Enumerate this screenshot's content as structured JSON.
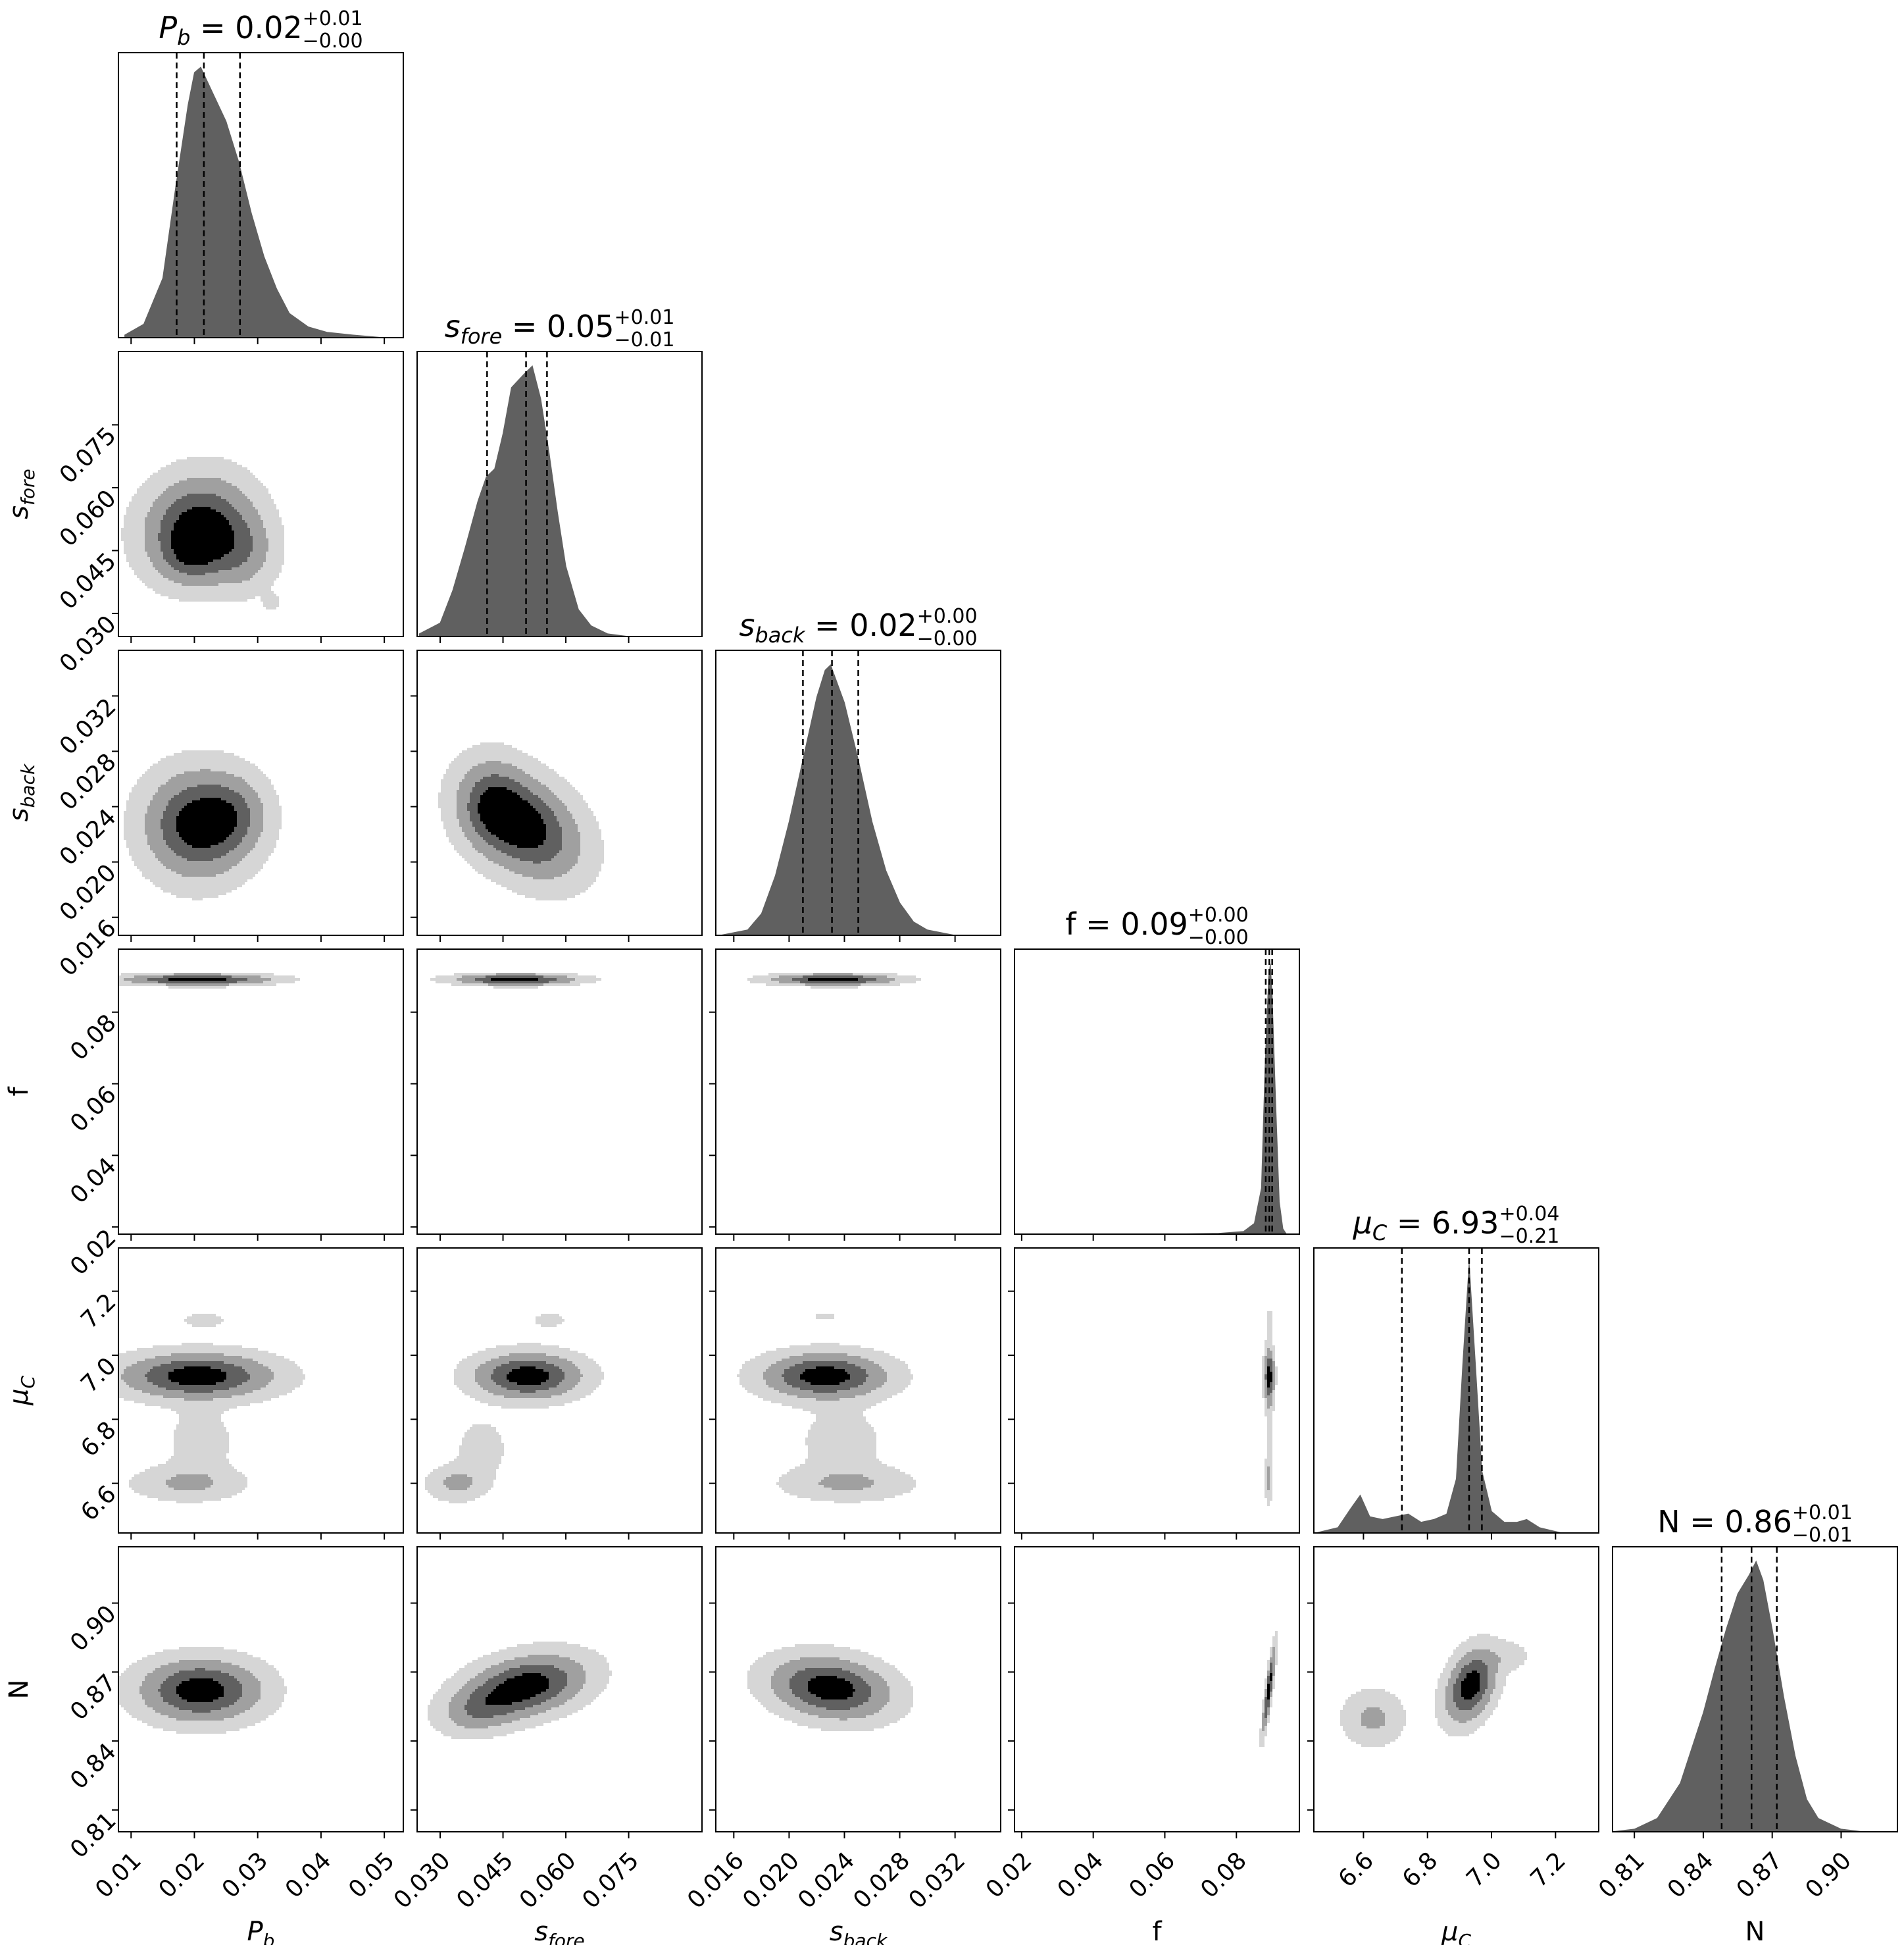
{
  "figure": {
    "style": {
      "hist_fill": "#606060",
      "contour_fills": [
        "#d6d6d6",
        "#a0a0a0",
        "#606060",
        "#000000"
      ],
      "frame_color": "#000000",
      "quantile_line": "dashed"
    },
    "parameters": [
      {
        "id": "Pb",
        "label": "P",
        "sub": "b",
        "italic": true,
        "range": [
          0.008,
          0.053
        ],
        "ticks": [
          "0.01",
          "0.02",
          "0.03",
          "0.04",
          "0.05"
        ],
        "tick_values": [
          0.01,
          0.02,
          0.03,
          0.04,
          0.05
        ]
      },
      {
        "id": "sfore",
        "label": "s",
        "sub": "fore",
        "italic": true,
        "range": [
          0.0245,
          0.0925
        ],
        "ticks": [
          "0.030",
          "0.045",
          "0.060",
          "0.075"
        ],
        "tick_values": [
          0.03,
          0.045,
          0.06,
          0.075
        ]
      },
      {
        "id": "sback",
        "label": "s",
        "sub": "back",
        "italic": true,
        "range": [
          0.0147,
          0.0353
        ],
        "ticks": [
          "0.016",
          "0.020",
          "0.024",
          "0.028",
          "0.032"
        ],
        "tick_values": [
          0.016,
          0.02,
          0.024,
          0.028,
          0.032
        ]
      },
      {
        "id": "f",
        "label": "f",
        "sub": "",
        "italic": false,
        "range": [
          0.018,
          0.0976
        ],
        "ticks": [
          "0.02",
          "0.04",
          "0.06",
          "0.08"
        ],
        "tick_values": [
          0.02,
          0.04,
          0.06,
          0.08
        ]
      },
      {
        "id": "muC",
        "label": "μ",
        "sub": "C",
        "italic": true,
        "range": [
          6.445,
          7.335
        ],
        "ticks": [
          "6.6",
          "6.8",
          "7.0",
          "7.2"
        ],
        "tick_values": [
          6.6,
          6.8,
          7.0,
          7.2
        ]
      },
      {
        "id": "N",
        "label": "N",
        "sub": "",
        "italic": false,
        "range": [
          0.8005,
          0.9245
        ],
        "ticks": [
          "0.81",
          "0.84",
          "0.87",
          "0.90"
        ],
        "tick_values": [
          0.81,
          0.84,
          0.87,
          0.9
        ]
      }
    ],
    "titles": [
      {
        "name": "P",
        "sub": "b",
        "italic": true,
        "value": "0.02",
        "plus": "+0.01",
        "minus": "−0.00"
      },
      {
        "name": "s",
        "sub": "fore",
        "italic": true,
        "value": "0.05",
        "plus": "+0.01",
        "minus": "−0.01"
      },
      {
        "name": "s",
        "sub": "back",
        "italic": true,
        "value": "0.02",
        "plus": "+0.00",
        "minus": "−0.00"
      },
      {
        "name": "f",
        "sub": "",
        "italic": false,
        "value": "0.09",
        "plus": "+0.00",
        "minus": "−0.00"
      },
      {
        "name": "μ",
        "sub": "C",
        "italic": true,
        "value": "6.93",
        "plus": "+0.04",
        "minus": "−0.21"
      },
      {
        "name": "N",
        "sub": "",
        "italic": false,
        "value": "0.86",
        "plus": "+0.01",
        "minus": "−0.01"
      }
    ]
  },
  "chart_data": {
    "type": "corner",
    "parameters": [
      "P_b",
      "s_fore",
      "s_back",
      "f",
      "μ_C",
      "N"
    ],
    "medians": [
      0.0215,
      0.0505,
      0.0231,
      0.0892,
      6.93,
      0.861
    ],
    "quantiles_16_84": [
      [
        0.0172,
        0.0272
      ],
      [
        0.0412,
        0.0555
      ],
      [
        0.021,
        0.025
      ],
      [
        0.0882,
        0.09
      ],
      [
        6.72,
        6.97
      ],
      [
        0.848,
        0.872
      ]
    ],
    "histograms": [
      {
        "x": [
          0.009,
          0.012,
          0.015,
          0.017,
          0.019,
          0.02,
          0.021,
          0.023,
          0.025,
          0.027,
          0.029,
          0.031,
          0.033,
          0.035,
          0.038,
          0.041,
          0.045,
          0.05
        ],
        "y": [
          0.01,
          0.05,
          0.22,
          0.55,
          0.86,
          0.98,
          1.0,
          0.9,
          0.8,
          0.65,
          0.46,
          0.3,
          0.18,
          0.09,
          0.04,
          0.02,
          0.01,
          0.0
        ]
      },
      {
        "x": [
          0.025,
          0.03,
          0.033,
          0.036,
          0.039,
          0.041,
          0.043,
          0.045,
          0.047,
          0.05,
          0.052,
          0.054,
          0.056,
          0.058,
          0.06,
          0.063,
          0.066,
          0.07,
          0.075
        ],
        "y": [
          0.01,
          0.05,
          0.17,
          0.33,
          0.5,
          0.59,
          0.62,
          0.75,
          0.92,
          0.97,
          1.0,
          0.88,
          0.68,
          0.46,
          0.26,
          0.1,
          0.04,
          0.01,
          0.0
        ]
      },
      {
        "x": [
          0.015,
          0.017,
          0.018,
          0.019,
          0.02,
          0.021,
          0.022,
          0.0226,
          0.023,
          0.024,
          0.025,
          0.026,
          0.027,
          0.028,
          0.029,
          0.03,
          0.032
        ],
        "y": [
          0.0,
          0.02,
          0.08,
          0.22,
          0.42,
          0.65,
          0.88,
          0.98,
          1.0,
          0.86,
          0.65,
          0.42,
          0.24,
          0.12,
          0.05,
          0.02,
          0.0
        ]
      },
      {
        "x": [
          0.02,
          0.06,
          0.075,
          0.082,
          0.085,
          0.087,
          0.088,
          0.089,
          0.0895,
          0.09,
          0.091,
          0.092,
          0.093,
          0.094
        ],
        "y": [
          0.0,
          0.0,
          0.003,
          0.01,
          0.04,
          0.17,
          0.62,
          0.95,
          1.0,
          0.88,
          0.48,
          0.12,
          0.02,
          0.0
        ]
      },
      {
        "x": [
          6.45,
          6.52,
          6.56,
          6.59,
          6.62,
          6.66,
          6.7,
          6.74,
          6.78,
          6.82,
          6.86,
          6.89,
          6.91,
          6.93,
          6.95,
          6.97,
          7.0,
          7.04,
          7.08,
          7.11,
          7.15,
          7.22,
          7.3
        ],
        "y": [
          0.0,
          0.02,
          0.09,
          0.14,
          0.06,
          0.05,
          0.06,
          0.07,
          0.04,
          0.05,
          0.07,
          0.2,
          0.62,
          1.0,
          0.62,
          0.23,
          0.08,
          0.04,
          0.04,
          0.05,
          0.02,
          0.0,
          0.0
        ]
      },
      {
        "x": [
          0.8,
          0.81,
          0.82,
          0.83,
          0.84,
          0.845,
          0.85,
          0.855,
          0.86,
          0.863,
          0.866,
          0.87,
          0.875,
          0.88,
          0.885,
          0.89,
          0.9,
          0.91
        ],
        "y": [
          0.0,
          0.01,
          0.05,
          0.18,
          0.44,
          0.6,
          0.75,
          0.88,
          0.95,
          1.0,
          0.93,
          0.75,
          0.5,
          0.28,
          0.12,
          0.05,
          0.01,
          0.0
        ]
      }
    ],
    "contour_levels": 4,
    "x_axis_labels": [
      "P_b",
      "s_fore",
      "s_back",
      "f",
      "μ_C",
      "N"
    ],
    "y_axis_labels": [
      "s_fore",
      "s_back",
      "f",
      "μ_C",
      "N"
    ]
  }
}
